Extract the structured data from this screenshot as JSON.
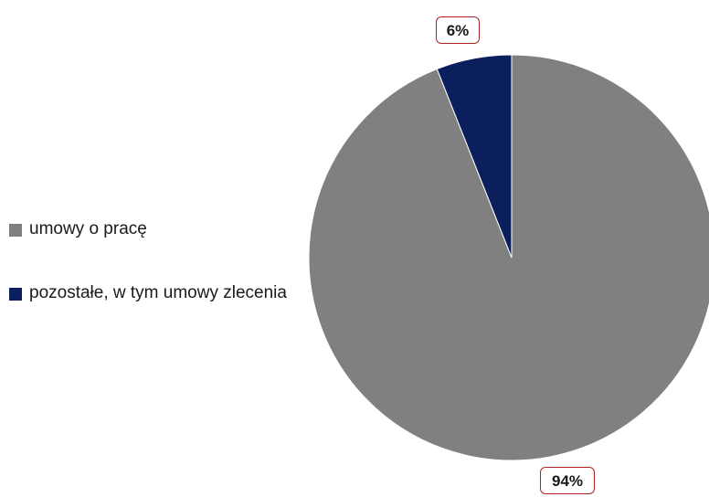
{
  "chart_data": {
    "type": "pie",
    "slices": [
      {
        "label": "umowy o pracę",
        "value": 94,
        "display": "94%",
        "color": "#808080"
      },
      {
        "label": "pozostałe, w tym umowy zlecenia",
        "value": 6,
        "display": "6%",
        "color": "#0b1f5c"
      }
    ],
    "start_angle_deg": 0,
    "direction": "clockwise",
    "legend_position": "left",
    "title": ""
  }
}
